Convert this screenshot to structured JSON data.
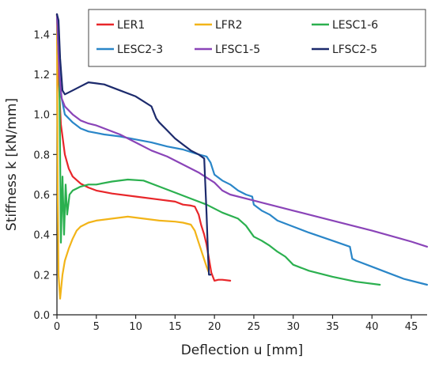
{
  "chart_data": {
    "type": "line",
    "title": "",
    "xlabel": "Deflection u [mm]",
    "ylabel": "Stiffness k [kN/mm]",
    "xlim": [
      0,
      47
    ],
    "ylim": [
      0,
      1.5
    ],
    "xticks": [
      "0",
      "5",
      "10",
      "15",
      "20",
      "25",
      "30",
      "35",
      "40",
      "45"
    ],
    "yticks": [
      "0.0",
      "0.2",
      "0.4",
      "0.6",
      "0.8",
      "1.0",
      "1.2",
      "1.4"
    ],
    "grid": false,
    "legend_position": "top-right",
    "series": [
      {
        "name": "LER1",
        "color": "#e8262a",
        "x": [
          0,
          0.2,
          0.5,
          1,
          1.5,
          2,
          3,
          4,
          5,
          7,
          10,
          13,
          15,
          16,
          17,
          17.5,
          18,
          18.3,
          18.7,
          19,
          19.3,
          19.6,
          20,
          20.5,
          21,
          22
        ],
        "y": [
          1.5,
          1.2,
          0.95,
          0.8,
          0.73,
          0.69,
          0.655,
          0.635,
          0.62,
          0.605,
          0.59,
          0.575,
          0.565,
          0.55,
          0.545,
          0.54,
          0.5,
          0.45,
          0.4,
          0.35,
          0.28,
          0.21,
          0.17,
          0.175,
          0.175,
          0.17
        ]
      },
      {
        "name": "LFR2",
        "color": "#f2b418",
        "x": [
          0,
          0.1,
          0.2,
          0.4,
          0.5,
          0.7,
          1,
          1.5,
          2,
          2.5,
          3,
          4,
          5,
          7,
          9,
          11,
          13,
          15,
          16,
          17,
          17.5,
          18,
          18.5,
          19,
          19.3
        ],
        "y": [
          1.5,
          0.6,
          0.2,
          0.08,
          0.12,
          0.2,
          0.27,
          0.33,
          0.38,
          0.42,
          0.44,
          0.46,
          0.47,
          0.48,
          0.49,
          0.48,
          0.47,
          0.465,
          0.46,
          0.45,
          0.42,
          0.36,
          0.3,
          0.24,
          0.21
        ]
      },
      {
        "name": "LESC1-6",
        "color": "#2bb04f",
        "x": [
          0,
          0.3,
          0.5,
          0.7,
          0.9,
          1.1,
          1.3,
          1.6,
          2,
          3,
          4,
          5,
          7,
          9,
          11,
          13,
          15,
          17,
          19,
          21,
          23,
          24,
          25,
          26,
          27,
          28,
          29,
          30,
          32,
          35,
          38,
          41
        ],
        "y": [
          1.5,
          1.25,
          0.36,
          0.69,
          0.4,
          0.65,
          0.5,
          0.6,
          0.62,
          0.64,
          0.65,
          0.65,
          0.665,
          0.675,
          0.67,
          0.64,
          0.61,
          0.58,
          0.55,
          0.51,
          0.48,
          0.445,
          0.39,
          0.37,
          0.345,
          0.315,
          0.29,
          0.25,
          0.22,
          0.19,
          0.165,
          0.15
        ]
      },
      {
        "name": "LESC2-3",
        "color": "#2a86c8",
        "x": [
          0,
          0.2,
          0.5,
          1,
          2,
          3,
          4,
          6,
          8,
          10,
          12,
          14,
          16,
          18,
          19,
          19.5,
          20,
          21,
          22,
          23,
          24,
          24.8,
          25,
          26,
          27,
          28,
          30,
          32,
          35,
          37.2,
          37.5,
          38,
          40,
          42,
          44,
          46,
          47
        ],
        "y": [
          1.5,
          1.3,
          1.1,
          1.0,
          0.96,
          0.93,
          0.915,
          0.9,
          0.89,
          0.875,
          0.86,
          0.84,
          0.825,
          0.8,
          0.79,
          0.76,
          0.7,
          0.67,
          0.65,
          0.62,
          0.6,
          0.59,
          0.55,
          0.52,
          0.5,
          0.47,
          0.44,
          0.41,
          0.37,
          0.34,
          0.28,
          0.27,
          0.24,
          0.21,
          0.18,
          0.16,
          0.15
        ]
      },
      {
        "name": "LFSC1-5",
        "color": "#8a44b8",
        "x": [
          0,
          0.3,
          0.6,
          1,
          2,
          3,
          4,
          5,
          6,
          8,
          10,
          12,
          14,
          16,
          18,
          20,
          21,
          22,
          25,
          30,
          35,
          40,
          45,
          47
        ],
        "y": [
          1.5,
          1.2,
          1.08,
          1.04,
          1.0,
          0.97,
          0.955,
          0.945,
          0.93,
          0.9,
          0.86,
          0.82,
          0.79,
          0.75,
          0.71,
          0.66,
          0.62,
          0.6,
          0.57,
          0.52,
          0.47,
          0.42,
          0.365,
          0.34
        ]
      },
      {
        "name": "LFSC2-5",
        "color": "#1c2a6c",
        "x": [
          0,
          0.2,
          0.4,
          0.7,
          1,
          2,
          3,
          4,
          5,
          6,
          8,
          10,
          12,
          12.6,
          13,
          14,
          15,
          16,
          17,
          18,
          18.7,
          19,
          19.2,
          19.3,
          19.4,
          19.5
        ],
        "y": [
          1.5,
          1.47,
          1.28,
          1.12,
          1.1,
          1.12,
          1.14,
          1.16,
          1.155,
          1.15,
          1.12,
          1.09,
          1.04,
          0.98,
          0.96,
          0.92,
          0.88,
          0.85,
          0.82,
          0.8,
          0.78,
          0.5,
          0.28,
          0.2,
          0.2,
          0.2
        ]
      }
    ]
  }
}
